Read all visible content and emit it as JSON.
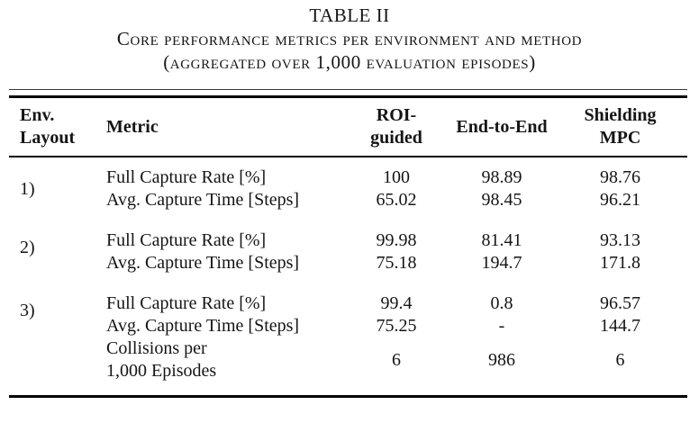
{
  "page": {
    "table_number": "TABLE II",
    "caption_line1": "Core performance metrics per environment and method",
    "caption_line2": "(aggregated over 1,000 evaluation episodes)"
  },
  "table": {
    "headers": [
      {
        "lines": [
          "Env.",
          "Layout"
        ]
      },
      {
        "lines": [
          "Metric"
        ]
      },
      {
        "lines": [
          "ROI-",
          "guided"
        ]
      },
      {
        "lines": [
          "End-to-End"
        ]
      },
      {
        "lines": [
          "Shielding",
          "MPC"
        ]
      }
    ],
    "groups": [
      {
        "env": "1)",
        "rows": [
          {
            "metric": "Full Capture Rate [%]",
            "values": [
              "100",
              "98.89",
              "98.76"
            ]
          },
          {
            "metric": "Avg. Capture Time [Steps]",
            "values": [
              "65.02",
              "98.45",
              "96.21"
            ]
          }
        ]
      },
      {
        "env": "2)",
        "rows": [
          {
            "metric": "Full Capture Rate [%]",
            "values": [
              "99.98",
              "81.41",
              "93.13"
            ]
          },
          {
            "metric": "Avg. Capture Time [Steps]",
            "values": [
              "75.18",
              "194.7",
              "171.8"
            ]
          }
        ]
      },
      {
        "env": "3)",
        "rows": [
          {
            "metric": "Full Capture Rate [%]",
            "values": [
              "99.4",
              "0.8",
              "96.57"
            ]
          },
          {
            "metric": "Avg. Capture Time [Steps]",
            "values": [
              "75.25",
              "-",
              "144.7"
            ]
          }
        ],
        "multirow": {
          "metric_lines": [
            "Collisions per",
            "1,000 Episodes"
          ],
          "values": [
            "6",
            "986",
            "6"
          ]
        }
      }
    ]
  },
  "colors": {
    "text": "#151515",
    "rule": "#000000",
    "background": "#ffffff"
  },
  "chart_data": {
    "type": "table",
    "title": "TABLE II — Core performance metrics per environment and method (aggregated over 1,000 evaluation episodes)",
    "columns": [
      "Env. Layout",
      "Metric",
      "ROI-guided",
      "End-to-End",
      "Shielding MPC"
    ],
    "rows": [
      [
        "1)",
        "Full Capture Rate [%]",
        "100",
        "98.89",
        "98.76"
      ],
      [
        "1)",
        "Avg. Capture Time [Steps]",
        "65.02",
        "98.45",
        "96.21"
      ],
      [
        "2)",
        "Full Capture Rate [%]",
        "99.98",
        "81.41",
        "93.13"
      ],
      [
        "2)",
        "Avg. Capture Time [Steps]",
        "75.18",
        "194.7",
        "171.8"
      ],
      [
        "3)",
        "Full Capture Rate [%]",
        "99.4",
        "0.8",
        "96.57"
      ],
      [
        "3)",
        "Avg. Capture Time [Steps]",
        "75.25",
        "-",
        "144.7"
      ],
      [
        "3)",
        "Collisions per 1,000 Episodes",
        "6",
        "986",
        "6"
      ]
    ]
  }
}
